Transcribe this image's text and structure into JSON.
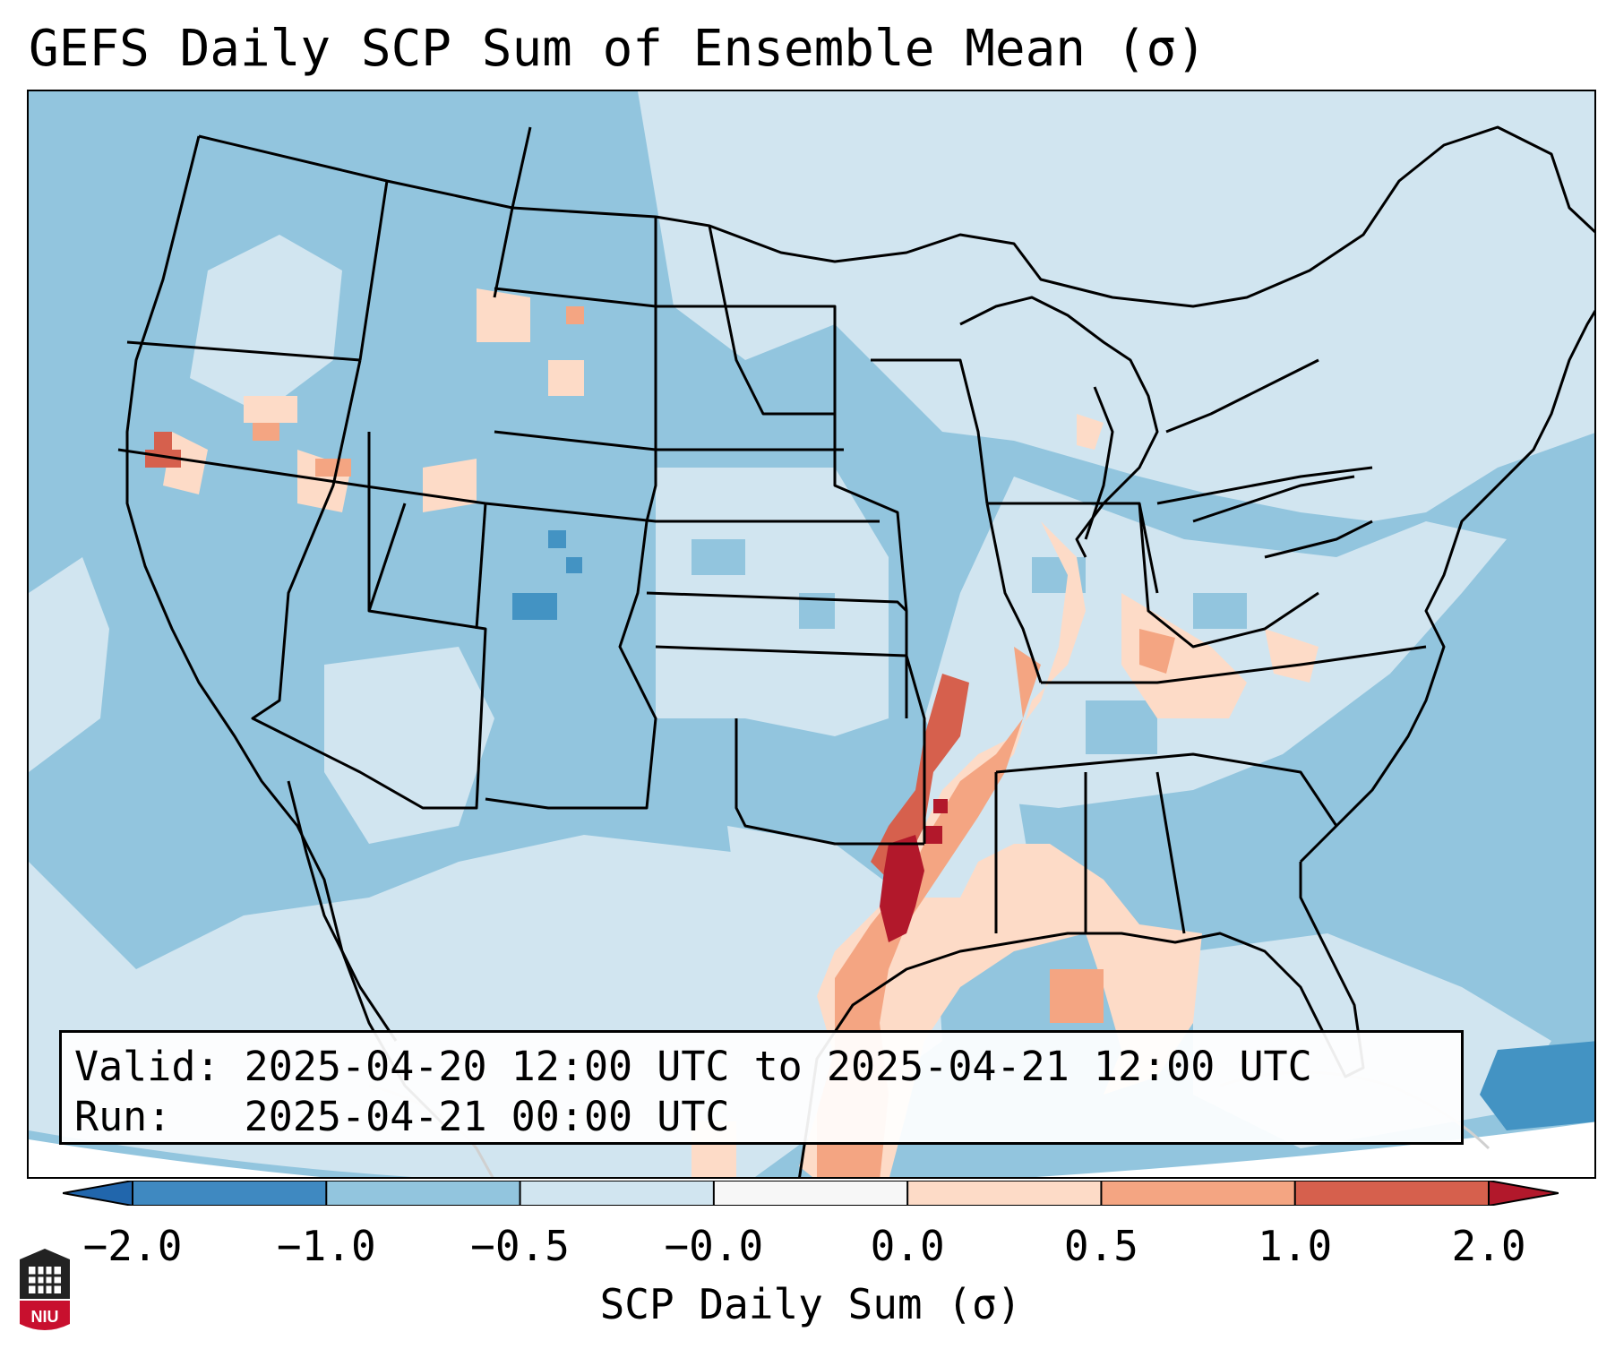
{
  "title": "GEFS Daily SCP Sum of Ensemble Mean (σ)",
  "info": {
    "valid_label": "Valid:",
    "valid_value": "2025-04-20 12:00 UTC to 2025-04-21 12:00 UTC",
    "run_label": "Run:",
    "run_value": "2025-04-21 00:00 UTC"
  },
  "colorbar": {
    "label": "SCP Daily Sum (σ)",
    "ticks": [
      "−2.0",
      "−1.0",
      "−0.5",
      "−0.0",
      "0.0",
      "0.5",
      "1.0",
      "2.0"
    ],
    "colors": [
      "#3f89c1",
      "#92c5de",
      "#d1e5f0",
      "#f7f7f7",
      "#fddbc7",
      "#f4a582",
      "#d6604d"
    ],
    "under_color": "#2166ac",
    "over_color": "#b2182b"
  },
  "logo": {
    "text": "NIU",
    "icon": "niu-logo-icon"
  }
}
